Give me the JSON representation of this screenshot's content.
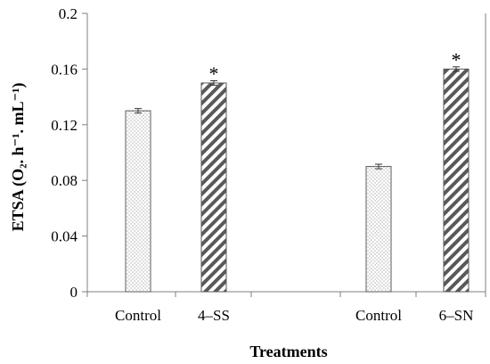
{
  "chart_data": {
    "type": "bar",
    "xlabel": "Treatments",
    "ylabel": "ETSA (O₂. h⁻¹. mL⁻¹)",
    "ylim": [
      0,
      0.2
    ],
    "yticks": [
      0,
      0.04,
      0.08,
      0.12,
      0.16,
      0.2
    ],
    "ytick_labels": [
      "0",
      "0.04",
      "0.08",
      "0.12",
      "0.16",
      "0.2"
    ],
    "grid": false,
    "bars": [
      {
        "category": "Control",
        "value": 0.13,
        "error": 0.001,
        "pattern": "dotted",
        "significance": ""
      },
      {
        "category": "4–SS",
        "value": 0.15,
        "error": 0.001,
        "pattern": "hatched",
        "significance": "*"
      },
      {
        "category": "Control",
        "value": 0.09,
        "error": 0.001,
        "pattern": "dotted",
        "significance": ""
      },
      {
        "category": "6–SN",
        "value": 0.16,
        "error": 0.001,
        "pattern": "hatched",
        "significance": "*"
      }
    ],
    "colors": {
      "axis": "#7f7f7f",
      "bar_border": "#595959",
      "hatch": "#595959",
      "dot": "#8c8c8c"
    }
  }
}
